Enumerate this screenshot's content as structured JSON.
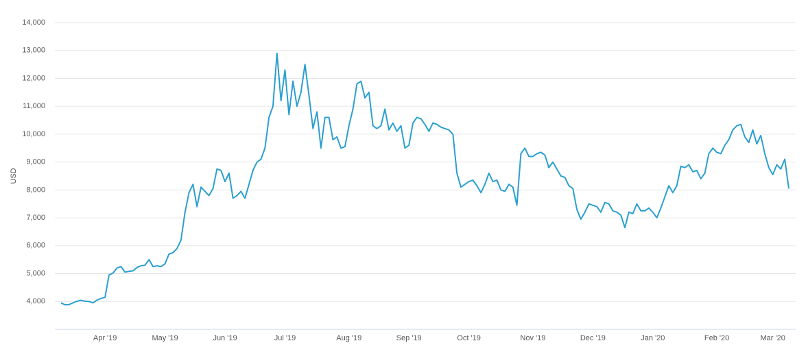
{
  "chart_data": {
    "type": "line",
    "y_label": "USD",
    "color": "#2a9fd0",
    "grid": true,
    "ylim": [
      3000,
      14000
    ],
    "yticks": [
      {
        "value": 4000,
        "label": "4,000"
      },
      {
        "value": 5000,
        "label": "5,000"
      },
      {
        "value": 6000,
        "label": "6,000"
      },
      {
        "value": 7000,
        "label": "7,000"
      },
      {
        "value": 8000,
        "label": "8,000"
      },
      {
        "value": 9000,
        "label": "9,000"
      },
      {
        "value": 10000,
        "label": "10,000"
      },
      {
        "value": 11000,
        "label": "11,000"
      },
      {
        "value": 12000,
        "label": "12,000"
      },
      {
        "value": 13000,
        "label": "13,000"
      },
      {
        "value": 14000,
        "label": "14,000"
      }
    ],
    "categories": [
      null,
      null,
      null,
      null,
      null,
      null,
      null,
      null,
      null,
      null,
      null,
      "Apr '19",
      null,
      null,
      null,
      null,
      null,
      null,
      null,
      null,
      null,
      null,
      null,
      null,
      null,
      null,
      "May '19",
      null,
      null,
      null,
      null,
      null,
      null,
      null,
      null,
      null,
      null,
      null,
      null,
      null,
      null,
      "Jun '19",
      null,
      null,
      null,
      null,
      null,
      null,
      null,
      null,
      null,
      null,
      null,
      null,
      null,
      null,
      "Jul '19",
      null,
      null,
      null,
      null,
      null,
      null,
      null,
      null,
      null,
      null,
      null,
      null,
      null,
      null,
      null,
      "Aug '19",
      null,
      null,
      null,
      null,
      null,
      null,
      null,
      null,
      null,
      null,
      null,
      null,
      null,
      null,
      "Sep '19",
      null,
      null,
      null,
      null,
      null,
      null,
      null,
      null,
      null,
      null,
      null,
      null,
      null,
      null,
      "Oct '19",
      null,
      null,
      null,
      null,
      null,
      null,
      null,
      null,
      null,
      null,
      null,
      null,
      null,
      null,
      null,
      "Nov '19",
      null,
      null,
      null,
      null,
      null,
      null,
      null,
      null,
      null,
      null,
      null,
      null,
      null,
      null,
      "Dec '19",
      null,
      null,
      null,
      null,
      null,
      null,
      null,
      null,
      null,
      null,
      null,
      null,
      null,
      null,
      "Jan '20",
      null,
      null,
      null,
      null,
      null,
      null,
      null,
      null,
      null,
      null,
      null,
      null,
      null,
      null,
      null,
      "Feb '20",
      null,
      null,
      null,
      null,
      null,
      null,
      null,
      null,
      null,
      null,
      null,
      null,
      null,
      "Mar '20",
      null,
      null,
      null,
      null
    ],
    "values": [
      3950,
      3880,
      3890,
      3950,
      4010,
      4040,
      4010,
      4000,
      3950,
      4050,
      4110,
      4150,
      4950,
      5020,
      5200,
      5250,
      5050,
      5080,
      5100,
      5220,
      5280,
      5300,
      5500,
      5250,
      5280,
      5250,
      5350,
      5700,
      5750,
      5900,
      6200,
      7200,
      7900,
      8200,
      7400,
      8100,
      7950,
      7800,
      8050,
      8750,
      8700,
      8300,
      8600,
      7700,
      7800,
      7950,
      7700,
      8200,
      8700,
      9000,
      9100,
      9500,
      10600,
      11000,
      12900,
      11200,
      12300,
      10700,
      11900,
      11000,
      11500,
      12500,
      11400,
      10200,
      10800,
      9500,
      10600,
      10600,
      9800,
      9900,
      9500,
      9550,
      10300,
      10900,
      11800,
      11900,
      11300,
      11500,
      10300,
      10200,
      10300,
      10900,
      10150,
      10400,
      10100,
      10300,
      9500,
      9600,
      10400,
      10600,
      10550,
      10350,
      10100,
      10400,
      10350,
      10250,
      10200,
      10150,
      10000,
      8600,
      8100,
      8200,
      8300,
      8350,
      8150,
      7900,
      8200,
      8600,
      8300,
      8350,
      8000,
      7950,
      8200,
      8100,
      7450,
      9300,
      9500,
      9200,
      9200,
      9300,
      9350,
      9250,
      8800,
      9000,
      8750,
      8500,
      8450,
      8150,
      8050,
      7300,
      6950,
      7200,
      7500,
      7450,
      7400,
      7200,
      7550,
      7500,
      7250,
      7200,
      7100,
      6650,
      7200,
      7150,
      7500,
      7250,
      7250,
      7350,
      7200,
      7000,
      7350,
      7750,
      8150,
      7900,
      8150,
      8850,
      8800,
      8900,
      8650,
      8700,
      8400,
      8600,
      9300,
      9500,
      9350,
      9300,
      9600,
      9800,
      10150,
      10300,
      10350,
      9900,
      9700,
      10150,
      9650,
      9950,
      9300,
      8800,
      8550,
      8900,
      8750,
      9100,
      8050
    ]
  }
}
